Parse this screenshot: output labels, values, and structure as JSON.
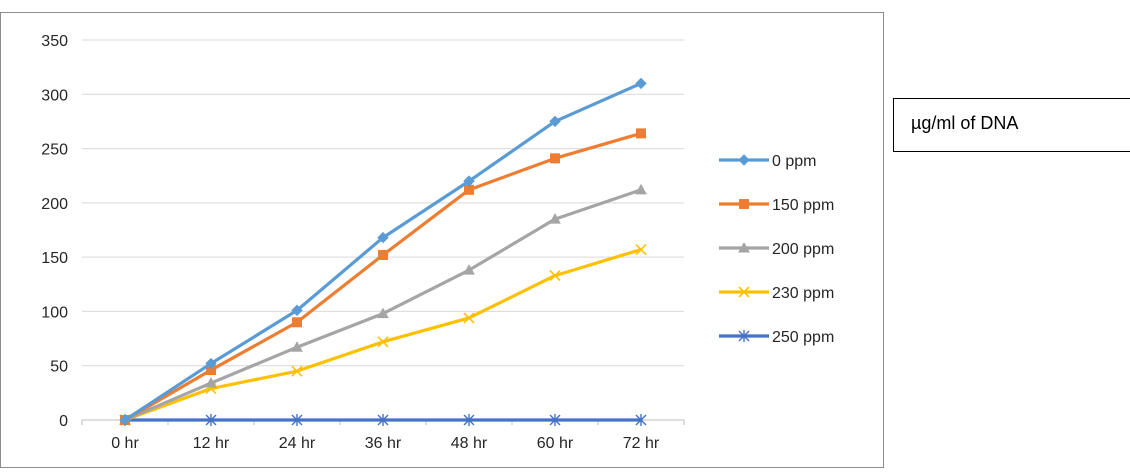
{
  "side_label": {
    "text": "µg/ml of DNA"
  },
  "chart_data": {
    "type": "line",
    "title": "",
    "xlabel": "",
    "ylabel": "",
    "categories": [
      "0 hr",
      "12 hr",
      "24 hr",
      "36 hr",
      "48 hr",
      "60 hr",
      "72 hr"
    ],
    "ylim": [
      0,
      350
    ],
    "yticks": [
      0,
      50,
      100,
      150,
      200,
      250,
      300,
      350
    ],
    "grid": true,
    "legend": "right",
    "series": [
      {
        "name": "0 ppm",
        "color": "#5b9bd5",
        "marker": "diamond",
        "values": [
          0,
          52,
          101,
          168,
          220,
          275,
          310
        ]
      },
      {
        "name": "150 ppm",
        "color": "#ed7d31",
        "marker": "square",
        "values": [
          0,
          46,
          90,
          152,
          212,
          241,
          264
        ]
      },
      {
        "name": "200 ppm",
        "color": "#a5a5a5",
        "marker": "triangle",
        "values": [
          0,
          34,
          67,
          98,
          138,
          185,
          212
        ]
      },
      {
        "name": "230 ppm",
        "color": "#ffc000",
        "marker": "x",
        "values": [
          0,
          29,
          45,
          72,
          94,
          133,
          157
        ]
      },
      {
        "name": "250 ppm",
        "color": "#4472c4",
        "marker": "star",
        "values": [
          0,
          0,
          0,
          0,
          0,
          0,
          0
        ]
      }
    ]
  }
}
